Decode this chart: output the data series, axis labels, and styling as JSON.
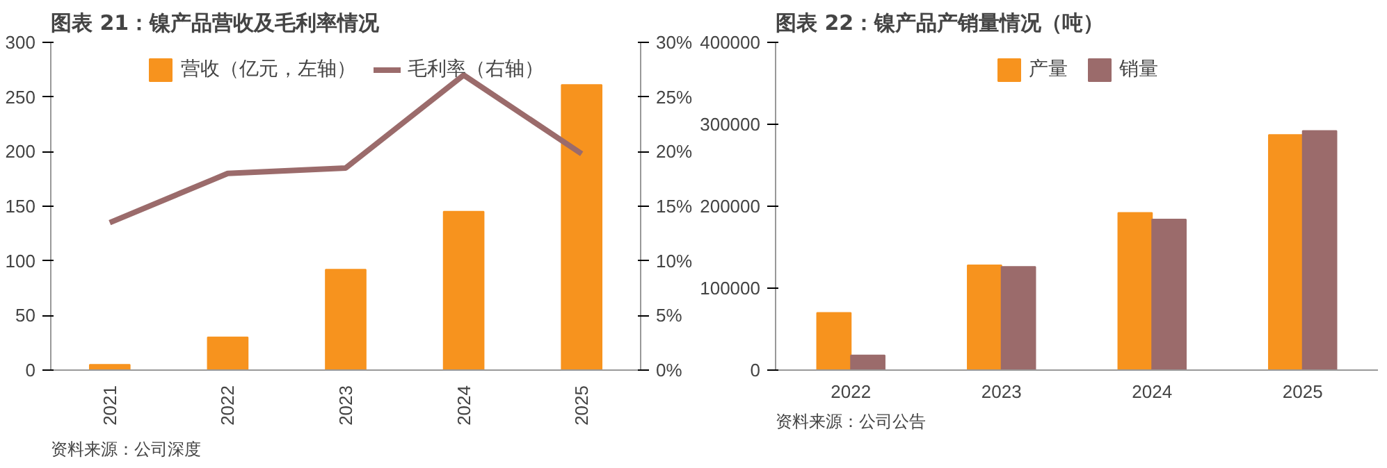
{
  "chart_data": [
    {
      "type": "bar",
      "title": "图表 21：镍产品营收及毛利率情况",
      "categories": [
        "2021",
        "2022",
        "2023",
        "2024",
        "2025"
      ],
      "series": [
        {
          "name": "营收（亿元，左轴）",
          "color": "#f7931e",
          "values": [
            5,
            30,
            92,
            145,
            261
          ]
        },
        {
          "name": "毛利率（右轴）",
          "type": "line",
          "axis": "y2",
          "color": "#9b6b6b",
          "values": [
            13.5,
            18,
            18.5,
            27,
            19.8
          ]
        }
      ],
      "ylim": [
        0,
        300
      ],
      "yticks": [
        0,
        50,
        100,
        150,
        200,
        250,
        300
      ],
      "y2lim": [
        0,
        30
      ],
      "y2ticks": [
        {
          "value": 0,
          "label": "0%"
        },
        {
          "value": 5,
          "label": "5%"
        },
        {
          "value": 10,
          "label": "10%"
        },
        {
          "value": 15,
          "label": "15%"
        },
        {
          "value": 20,
          "label": "20%"
        },
        {
          "value": 25,
          "label": "25%"
        },
        {
          "value": 30,
          "label": "30%"
        }
      ],
      "legend": "top",
      "annotations": [
        "资料来源：公司深度"
      ]
    },
    {
      "type": "bar",
      "title": "图表 22：镍产品产销量情况（吨）",
      "categories": [
        "2022",
        "2023",
        "2024",
        "2025"
      ],
      "series": [
        {
          "name": "产量",
          "color": "#f7931e",
          "values": [
            70000,
            128000,
            192000,
            287000
          ]
        },
        {
          "name": "销量",
          "color": "#9b6b6b",
          "values": [
            18000,
            126000,
            184000,
            292000
          ]
        }
      ],
      "ylim": [
        0,
        400000
      ],
      "yticks": [
        0,
        100000,
        200000,
        300000,
        400000
      ],
      "legend": "top",
      "annotations": [
        "资料来源：公司公告"
      ]
    }
  ]
}
